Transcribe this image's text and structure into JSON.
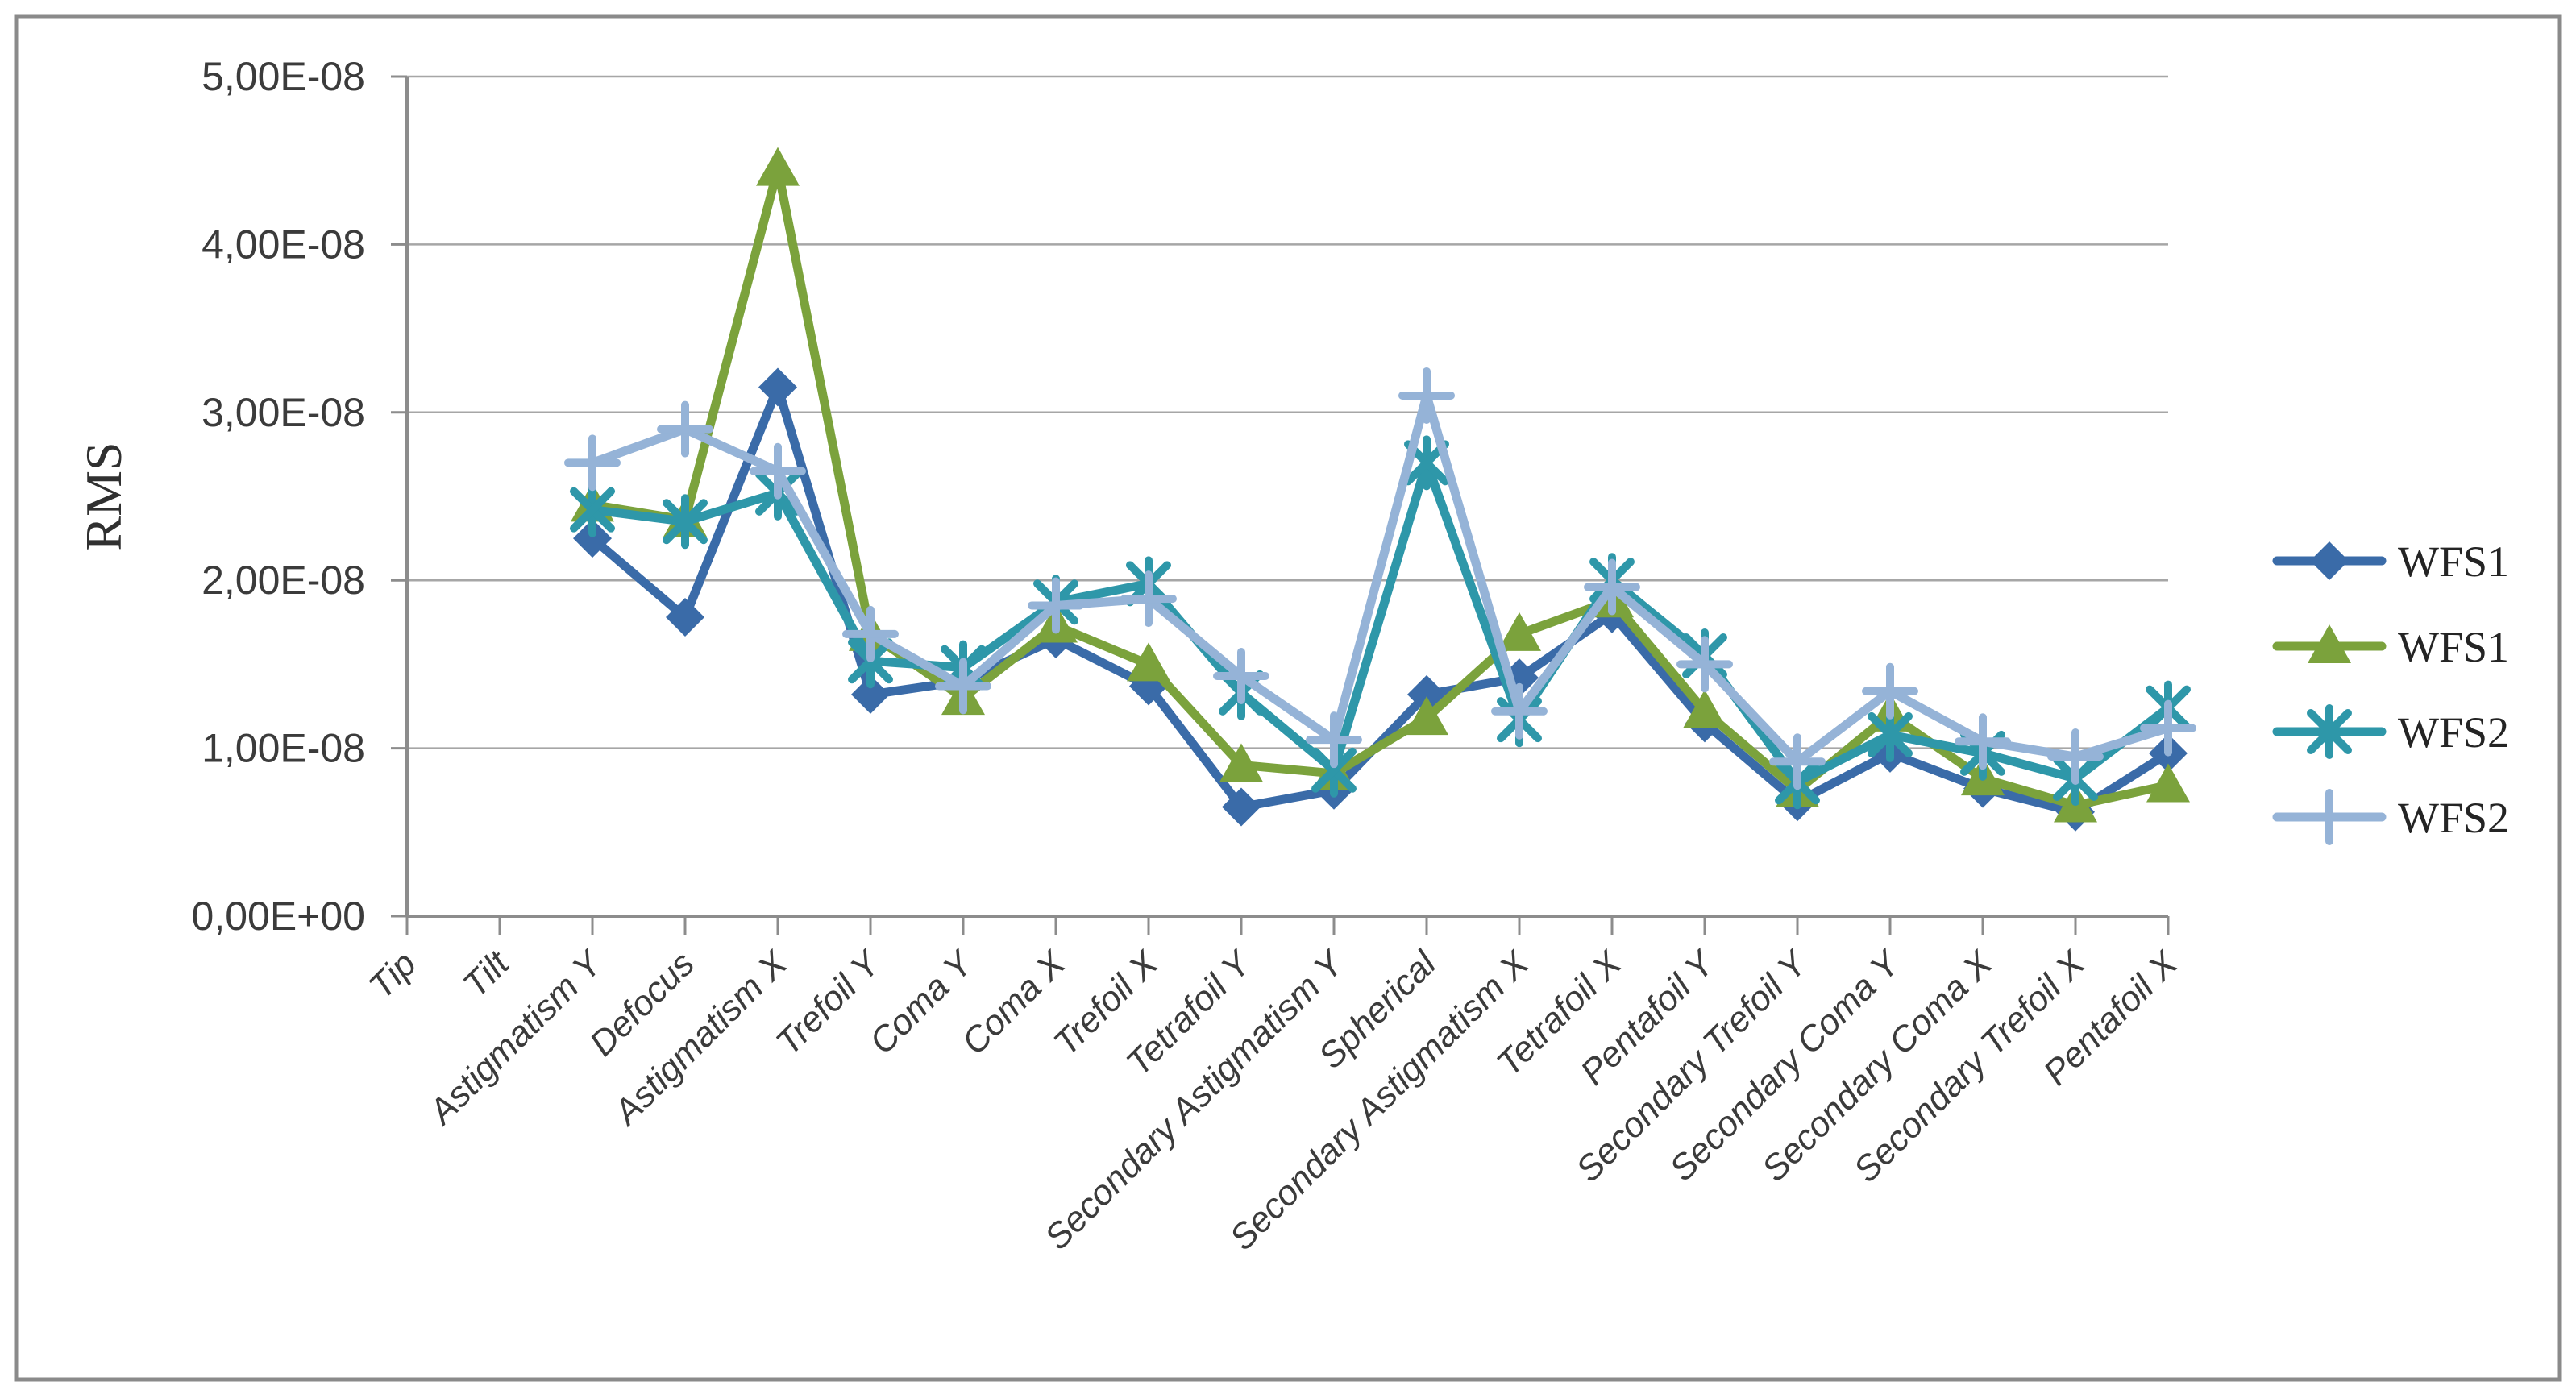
{
  "window": {
    "background": "#ffffff",
    "border_color": "#8a8a8a"
  },
  "chart_data": {
    "type": "line",
    "title": "",
    "ylabel": "RMS",
    "xlabel": "",
    "ylim": [
      0,
      5e-08
    ],
    "grid": "horizontal-gridlines-on",
    "legend_position": "right-middle",
    "axis_color": "#8c8c8c",
    "gridline_color": "#a6a6a6",
    "ytick_labels": [
      "0,00E+00",
      "1,00E-08",
      "2,00E-08",
      "3,00E-08",
      "4,00E-08",
      "5,00E-08"
    ],
    "categories": [
      "Tip",
      "Tilt",
      "Astigmatism Y",
      "Defocus",
      "Astigmatism X",
      "Trefoil Y",
      "Coma Y",
      "Coma X",
      "Trefoil X",
      "Tetrafoil Y",
      "Secondary Astigmatism Y",
      "Spherical",
      "Secondary Astigmatism X",
      "Tetrafoil X",
      "Pentafoil Y",
      "Secondary Trefoil Y",
      "Secondary Coma Y",
      "Secondary Coma X",
      "Secondary Trefoil X",
      "Pentafoil X"
    ],
    "series": [
      {
        "name": "WFS1",
        "marker": "diamond",
        "color": "#3a6ba8",
        "values": [
          null,
          null,
          2.25e-08,
          1.78e-08,
          3.15e-08,
          1.32e-08,
          1.4e-08,
          1.65e-08,
          1.37e-08,
          6.5e-09,
          7.5e-09,
          1.32e-08,
          1.42e-08,
          1.8e-08,
          1.15e-08,
          6.8e-09,
          9.7e-09,
          7.6e-09,
          6.2e-09,
          9.7e-09
        ]
      },
      {
        "name": "WFS1",
        "marker": "triangle",
        "color": "#7ba23c",
        "values": [
          null,
          null,
          2.45e-08,
          2.36e-08,
          4.45e-08,
          1.68e-08,
          1.3e-08,
          1.73e-08,
          1.5e-08,
          9e-09,
          8.5e-09,
          1.18e-08,
          1.68e-08,
          1.88e-08,
          1.22e-08,
          7.5e-09,
          1.2e-08,
          8.2e-09,
          6.6e-09,
          7.8e-09
        ]
      },
      {
        "name": "WFS2",
        "marker": "asterisk",
        "color": "#2e97a9",
        "values": [
          null,
          null,
          2.42e-08,
          2.35e-08,
          2.52e-08,
          1.52e-08,
          1.48e-08,
          1.87e-08,
          1.98e-08,
          1.33e-08,
          8.7e-09,
          2.7e-08,
          1.17e-08,
          2e-08,
          1.55e-08,
          8e-09,
          1.08e-08,
          9.7e-09,
          8.2e-09,
          1.24e-08
        ]
      },
      {
        "name": "WFS2",
        "marker": "plus",
        "color": "#95b3d7",
        "values": [
          null,
          null,
          2.7e-08,
          2.9e-08,
          2.65e-08,
          1.68e-08,
          1.37e-08,
          1.85e-08,
          1.89e-08,
          1.43e-08,
          1.05e-08,
          3.1e-08,
          1.22e-08,
          1.96e-08,
          1.5e-08,
          9.2e-09,
          1.34e-08,
          1.04e-08,
          9.5e-09,
          1.12e-08
        ]
      }
    ]
  }
}
